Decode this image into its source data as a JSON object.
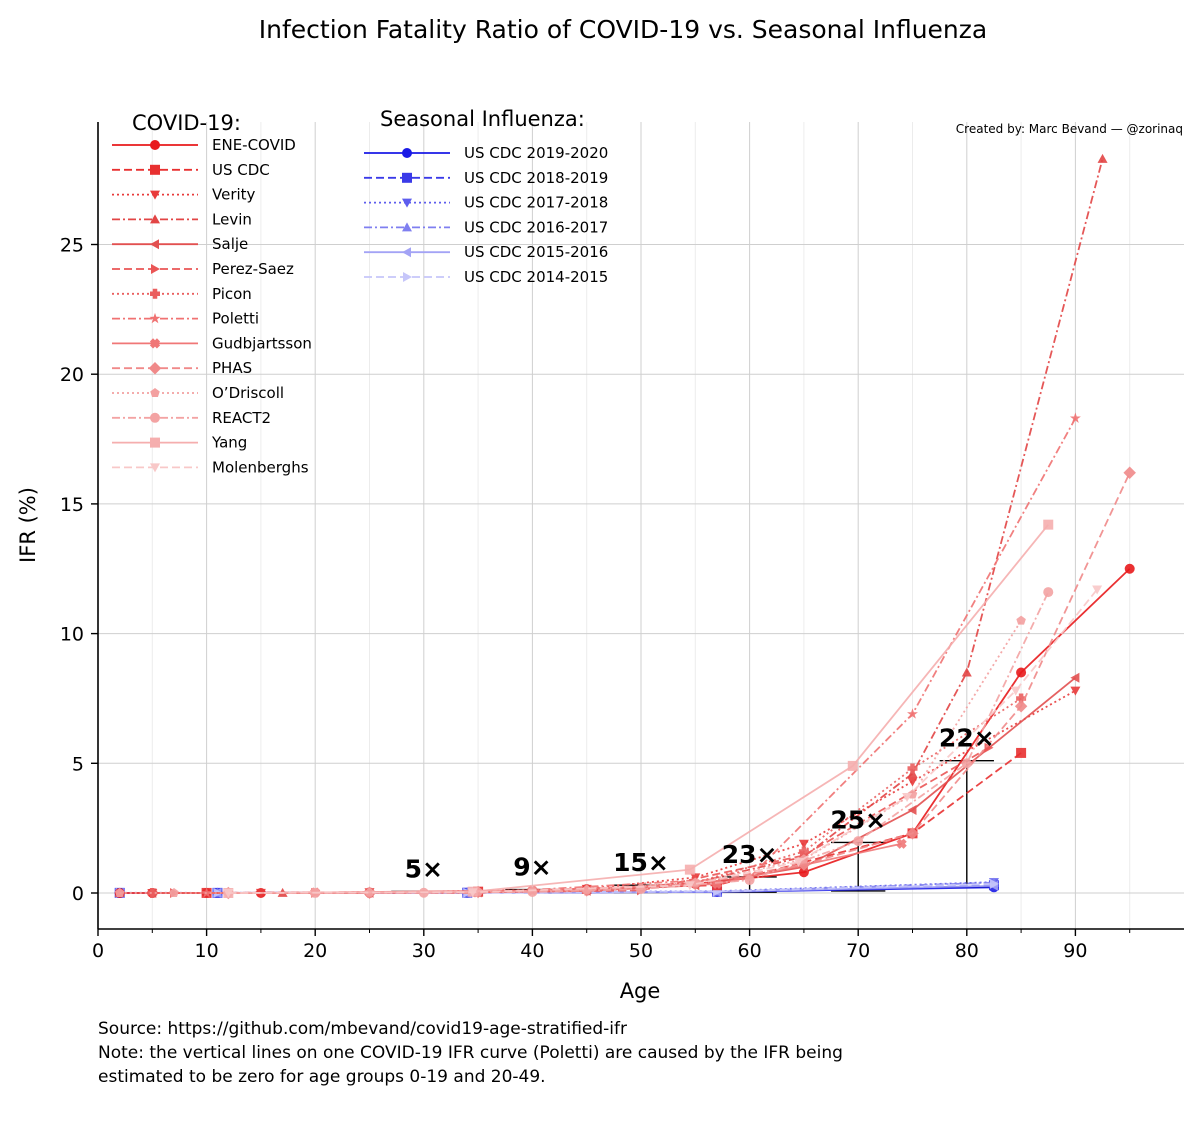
{
  "chart_data": {
    "type": "line",
    "title": "Infection Fatality Ratio of COVID-19 vs. Seasonal Influenza",
    "xlabel": "Age",
    "ylabel": "IFR (%)",
    "xlim": [
      0,
      100
    ],
    "ylim": [
      -1.4,
      29.5
    ],
    "x_ticks": [
      0,
      10,
      20,
      30,
      40,
      50,
      60,
      70,
      80,
      90
    ],
    "y_ticks": [
      0,
      5,
      10,
      15,
      20,
      25
    ],
    "grid": true,
    "credit": "Created by: Marc Bevand — @zorinaq",
    "covid_legend_title": "COVID-19:",
    "flu_legend_title": "Seasonal Influenza:",
    "covid_series": [
      {
        "name": "ENE-COVID",
        "color": "#e8191c",
        "dash": "solid",
        "marker": "circle",
        "x": [
          2,
          5,
          10,
          15,
          25,
          35,
          45,
          55,
          65,
          75,
          85,
          95
        ],
        "y": [
          0,
          0,
          0,
          0,
          0.01,
          0.05,
          0.15,
          0.35,
          0.8,
          2.3,
          8.5,
          12.5
        ]
      },
      {
        "name": "US CDC",
        "color": "#e83030",
        "dash": "dashed",
        "marker": "square",
        "x": [
          10,
          35,
          57,
          75,
          85
        ],
        "y": [
          0.003,
          0.05,
          0.3,
          2.3,
          5.4
        ]
      },
      {
        "name": "Verity",
        "color": "#e83a3a",
        "dash": "dotted",
        "marker": "triangle-down",
        "x": [
          5,
          15,
          25,
          35,
          45,
          55,
          65,
          75,
          90
        ],
        "y": [
          0.0016,
          0.007,
          0.03,
          0.08,
          0.16,
          0.6,
          1.9,
          4.3,
          7.8
        ]
      },
      {
        "name": "Levin",
        "color": "#e24545",
        "dash": "dashdot",
        "marker": "triangle-up",
        "x": [
          2,
          17,
          35,
          45,
          55,
          65,
          75,
          80,
          92.5
        ],
        "y": [
          0,
          0.004,
          0.04,
          0.12,
          0.4,
          1.4,
          4.6,
          8.5,
          28.3
        ]
      },
      {
        "name": "Salje",
        "color": "#e25050",
        "dash": "solid",
        "marker": "triangle-left",
        "x": [
          5,
          25,
          35,
          45,
          55,
          65,
          75,
          90
        ],
        "y": [
          0.001,
          0.005,
          0.03,
          0.08,
          0.3,
          1.0,
          3.2,
          8.3
        ]
      },
      {
        "name": "Perez-Saez",
        "color": "#ea5555",
        "dash": "dashed",
        "marker": "triangle-right",
        "x": [
          7,
          20,
          35,
          50,
          65,
          82
        ],
        "y": [
          0.0007,
          0.0032,
          0.03,
          0.1,
          1.45,
          5.6
        ]
      },
      {
        "name": "Picon",
        "color": "#ea5f5f",
        "dash": "dotted",
        "marker": "plus",
        "x": [
          5,
          25,
          45,
          55,
          65,
          75,
          85
        ],
        "y": [
          0.001,
          0.01,
          0.1,
          0.4,
          1.6,
          4.8,
          7.5
        ]
      },
      {
        "name": "Poletti",
        "color": "#f07272",
        "dash": "dashdot",
        "marker": "star",
        "x": [
          10,
          35,
          60,
          75,
          90
        ],
        "y": [
          0,
          0,
          0.6,
          6.9,
          18.3
        ]
      },
      {
        "name": "Gudbjartsson",
        "color": "#f07777",
        "dash": "solid",
        "marker": "x-filled",
        "x": [
          20,
          40,
          57,
          74
        ],
        "y": [
          0.02,
          0.1,
          0.35,
          1.9
        ]
      },
      {
        "name": "PHAS",
        "color": "#f08989",
        "dash": "dashed",
        "marker": "diamond",
        "x": [
          12,
          25,
          35,
          45,
          55,
          65,
          75,
          85,
          95
        ],
        "y": [
          0.001,
          0.01,
          0.04,
          0.1,
          0.35,
          1.1,
          2.3,
          7.2,
          16.2
        ]
      },
      {
        "name": "O’Driscoll",
        "color": "#f3a0a0",
        "dash": "dotted",
        "marker": "pentagon",
        "x": [
          2,
          7,
          12,
          25,
          35,
          45,
          55,
          65,
          75,
          85
        ],
        "y": [
          0.003,
          0.0011,
          0.0015,
          0.015,
          0.05,
          0.12,
          0.4,
          1.3,
          3.8,
          10.5
        ]
      },
      {
        "name": "REACT2",
        "color": "#f3a3a3",
        "dash": "dashdot",
        "marker": "octagon",
        "x": [
          20,
          30,
          40,
          50,
          60,
          70,
          80,
          87.5
        ],
        "y": [
          0.003,
          0.01,
          0.04,
          0.15,
          0.5,
          2.0,
          5.0,
          11.6
        ]
      },
      {
        "name": "Yang",
        "color": "#f5aeae",
        "dash": "solid",
        "marker": "square",
        "x": [
          12,
          34.5,
          54.5,
          69.5,
          87.5
        ],
        "y": [
          0,
          0.05,
          0.9,
          4.9,
          14.2
        ]
      },
      {
        "name": "Molenberghs",
        "color": "#f8c8c8",
        "dash": "dashed",
        "marker": "triangle-down",
        "x": [
          12,
          34.5,
          54.5,
          64.5,
          74.5,
          84.5,
          92
        ],
        "y": [
          0,
          0.03,
          0.3,
          1.2,
          3.7,
          7.8,
          11.7
        ]
      }
    ],
    "flu_series": [
      {
        "name": "US CDC 2019-2020",
        "color": "#1a1ae6",
        "dash": "solid",
        "marker": "circle",
        "x": [
          2,
          11,
          34,
          57,
          82.5
        ],
        "y": [
          0.005,
          0.005,
          0.012,
          0.04,
          0.22
        ]
      },
      {
        "name": "US CDC 2018-2019",
        "color": "#3a3ae8",
        "dash": "dashed",
        "marker": "square",
        "x": [
          2,
          11,
          34,
          57,
          82.5
        ],
        "y": [
          0.005,
          0.005,
          0.012,
          0.05,
          0.3
        ]
      },
      {
        "name": "US CDC 2017-2018",
        "color": "#5d5dee",
        "dash": "dotted",
        "marker": "triangle-down",
        "x": [
          2,
          11,
          34,
          57,
          82.5
        ],
        "y": [
          0.007,
          0.006,
          0.018,
          0.07,
          0.42
        ]
      },
      {
        "name": "US CDC 2016-2017",
        "color": "#7f7ff0",
        "dash": "dashdot",
        "marker": "triangle-up",
        "x": [
          2,
          11,
          34,
          57,
          82.5
        ],
        "y": [
          0.004,
          0.004,
          0.01,
          0.05,
          0.4
        ]
      },
      {
        "name": "US CDC 2015-2016",
        "color": "#a3a3f5",
        "dash": "solid",
        "marker": "triangle-left",
        "x": [
          2,
          11,
          34,
          57,
          82.5
        ],
        "y": [
          0.005,
          0.005,
          0.015,
          0.05,
          0.28
        ]
      },
      {
        "name": "US CDC 2014-2015",
        "color": "#c6c6fa",
        "dash": "dashed",
        "marker": "triangle-right",
        "x": [
          2,
          11,
          34,
          57,
          82.5
        ],
        "y": [
          0.004,
          0.004,
          0.011,
          0.06,
          0.35
        ]
      }
    ],
    "ratio_markers": [
      {
        "label": "5×",
        "x": 30,
        "low": 0.012,
        "high": 0.06,
        "cap_half_width": 3
      },
      {
        "label": "9×",
        "x": 40,
        "low": 0.014,
        "high": 0.13,
        "cap_half_width": 2.5
      },
      {
        "label": "15×",
        "x": 50,
        "low": 0.02,
        "high": 0.3,
        "cap_half_width": 2.5
      },
      {
        "label": "23×",
        "x": 60,
        "low": 0.03,
        "high": 0.62,
        "cap_half_width": 2.5
      },
      {
        "label": "25×",
        "x": 70,
        "low": 0.08,
        "high": 1.95,
        "cap_half_width": 2.5
      },
      {
        "label": "22×",
        "x": 80,
        "low": 0.23,
        "high": 5.1,
        "cap_half_width": 2.5
      }
    ]
  },
  "footer": {
    "source": "Source: https://github.com/mbevand/covid19-age-stratified-ifr",
    "note_line1": "Note: the vertical lines on one COVID-19 IFR curve (Poletti) are caused by the IFR being",
    "note_line2": "estimated to be zero for age groups 0-19 and 20-49."
  }
}
